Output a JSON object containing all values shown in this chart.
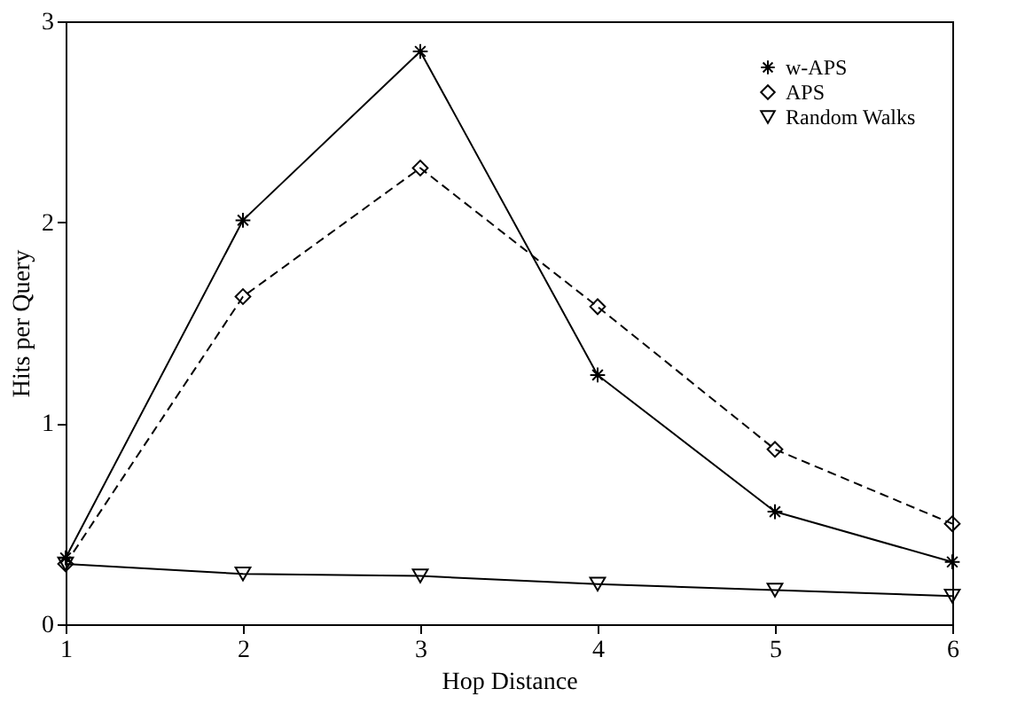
{
  "chart_data": {
    "type": "line",
    "xlabel": "Hop Distance",
    "ylabel": "Hits per Query",
    "x": [
      1,
      2,
      3,
      4,
      5,
      6
    ],
    "xlim": [
      1,
      6
    ],
    "ylim": [
      0,
      3
    ],
    "xticks": [
      1,
      2,
      3,
      4,
      5,
      6
    ],
    "yticks": [
      0,
      1,
      2,
      3
    ],
    "grid": false,
    "legend": "top right",
    "series": [
      {
        "name": "w-APS",
        "color": "#000000",
        "marker": "cross",
        "line_style": "solid",
        "values": [
          0.33,
          2.01,
          2.85,
          1.24,
          0.56,
          0.31
        ]
      },
      {
        "name": "APS",
        "color": "#000000",
        "marker": "diamond",
        "line_style": "dashed",
        "values": [
          0.3,
          1.63,
          2.27,
          1.58,
          0.87,
          0.5
        ]
      },
      {
        "name": "Random Walks",
        "color": "#000000",
        "marker": "triangle",
        "line_style": "solid",
        "values": [
          0.3,
          0.25,
          0.24,
          0.2,
          0.17,
          0.14
        ]
      }
    ]
  }
}
